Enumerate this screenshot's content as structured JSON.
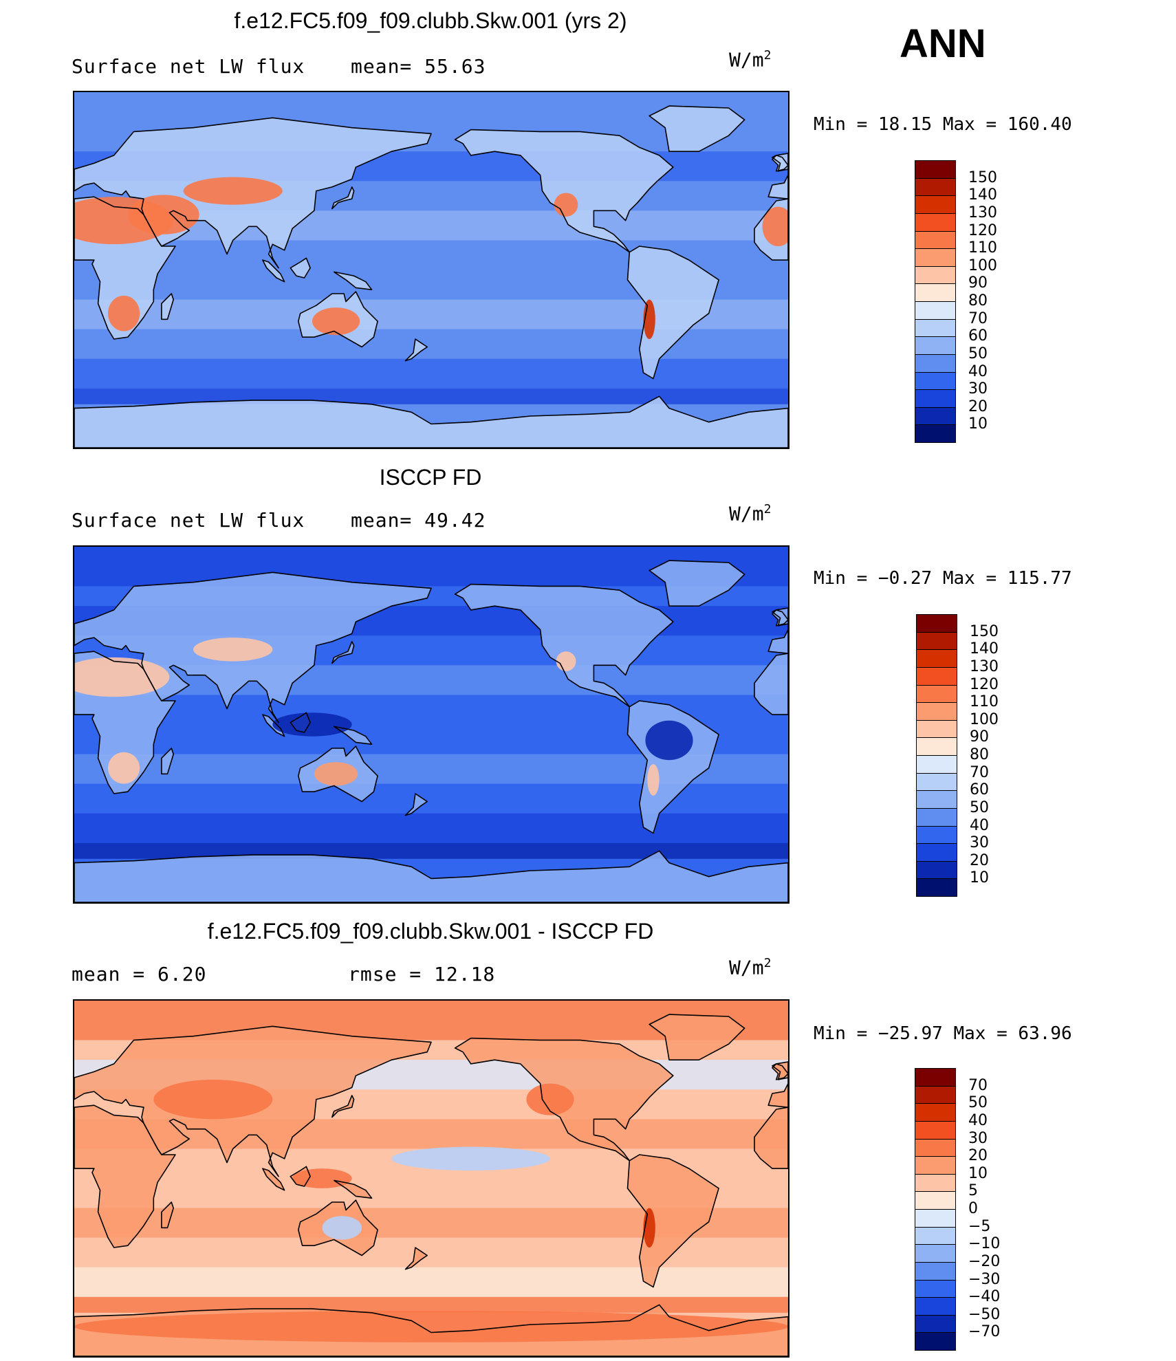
{
  "season": "ANN",
  "panels": [
    {
      "title": "f.e12.FC5.f09_f09.clubb.Skw.001 (yrs 2)",
      "left_text": "Surface net LW flux",
      "mid_text": "mean=  55.63",
      "units_base": "W/m",
      "units_exp": "2",
      "minmax": "Min =   18.15 Max = 160.40",
      "colorbar_levels": [
        "150",
        "140",
        "130",
        "120",
        "110",
        "100",
        "90",
        "80",
        "70",
        "60",
        "50",
        "40",
        "30",
        "20",
        "10"
      ],
      "colorbar_colors": [
        "#7a0000",
        "#b01a00",
        "#d53000",
        "#f25020",
        "#f87848",
        "#fa9c70",
        "#fdc4a8",
        "#fde8d8",
        "#dbe9fb",
        "#b7d0f8",
        "#8eb2f4",
        "#5f8ef0",
        "#3366ef",
        "#1a45dc",
        "#0a28b0",
        "#00106e"
      ],
      "palette": "pos"
    },
    {
      "title": "ISCCP FD",
      "left_text": "Surface net LW flux",
      "mid_text": "mean=  49.42",
      "units_base": "W/m",
      "units_exp": "2",
      "minmax": "Min =  −0.27 Max = 115.77",
      "colorbar_levels": [
        "150",
        "140",
        "130",
        "120",
        "110",
        "100",
        "90",
        "80",
        "70",
        "60",
        "50",
        "40",
        "30",
        "20",
        "10"
      ],
      "colorbar_colors": [
        "#7a0000",
        "#b01a00",
        "#d53000",
        "#f25020",
        "#f87848",
        "#fa9c70",
        "#fdc4a8",
        "#fde8d8",
        "#dbe9fb",
        "#b7d0f8",
        "#8eb2f4",
        "#5f8ef0",
        "#3366ef",
        "#1a45dc",
        "#0a28b0",
        "#00106e"
      ],
      "palette": "obs"
    },
    {
      "title": "f.e12.FC5.f09_f09.clubb.Skw.001 - ISCCP FD",
      "left_text": "mean =    6.20",
      "mid_text": "rmse =   12.18",
      "units_base": "W/m",
      "units_exp": "2",
      "minmax": "Min = −25.97 Max =   63.96",
      "colorbar_levels": [
        "70",
        "50",
        "40",
        "30",
        "20",
        "10",
        "5",
        "0",
        "−5",
        "−10",
        "−20",
        "−30",
        "−40",
        "−50",
        "−70"
      ],
      "colorbar_colors": [
        "#7a0000",
        "#b01a00",
        "#d53000",
        "#f25020",
        "#f87848",
        "#fa9c70",
        "#fdc4a8",
        "#fde8d8",
        "#dbe9fb",
        "#b7d0f8",
        "#8eb2f4",
        "#5f8ef0",
        "#3366ef",
        "#1a45dc",
        "#0a28b0",
        "#00106e"
      ],
      "palette": "diff"
    }
  ]
}
